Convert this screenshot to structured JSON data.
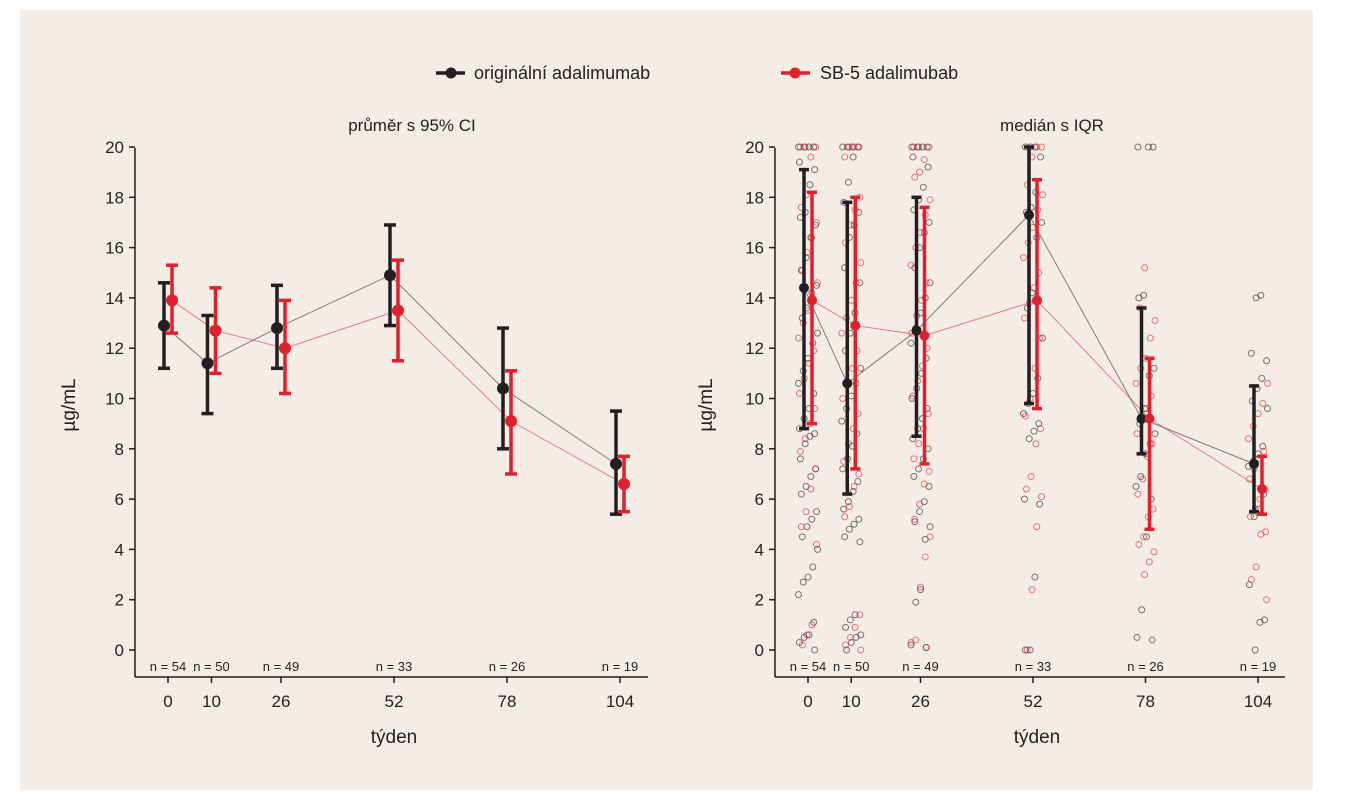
{
  "legend": [
    {
      "label": "originální adalimumab",
      "color": "#231f20"
    },
    {
      "label": "SB-5 adalimubab",
      "color": "#e2202c"
    }
  ],
  "chart_data": [
    {
      "type": "line",
      "title": "průměr s 95% CI",
      "xlabel": "týden",
      "ylabel": "µg/mL",
      "x": [
        0,
        10,
        26,
        52,
        78,
        104
      ],
      "x_tick_labels": [
        "0",
        "10",
        "26",
        "52",
        "78",
        "104"
      ],
      "y_ticks": [
        0,
        2,
        4,
        6,
        8,
        10,
        12,
        14,
        16,
        18,
        20
      ],
      "ylim": [
        -1,
        20
      ],
      "n_labels": [
        "n = 54",
        "n = 50",
        "n = 49",
        "n = 33",
        "n = 26",
        "n = 19"
      ],
      "series": [
        {
          "name": "originální adalimumab",
          "color": "#231f20",
          "values": [
            12.9,
            11.4,
            12.8,
            14.9,
            10.4,
            7.4
          ],
          "lower": [
            11.2,
            9.4,
            11.2,
            12.9,
            8.0,
            5.4
          ],
          "upper": [
            14.6,
            13.3,
            14.5,
            16.9,
            12.8,
            9.5
          ]
        },
        {
          "name": "SB-5 adalimubab",
          "color": "#e2202c",
          "values": [
            13.9,
            12.7,
            12.0,
            13.5,
            9.1,
            6.6
          ],
          "lower": [
            12.6,
            11.0,
            10.2,
            11.5,
            7.0,
            5.5
          ],
          "upper": [
            15.3,
            14.4,
            13.9,
            15.5,
            11.1,
            7.7
          ]
        }
      ]
    },
    {
      "type": "scatter",
      "title": "medián s IQR",
      "xlabel": "týden",
      "ylabel": "µg/mL",
      "x": [
        0,
        10,
        26,
        52,
        78,
        104
      ],
      "x_tick_labels": [
        "0",
        "10",
        "26",
        "52",
        "78",
        "104"
      ],
      "y_ticks": [
        0,
        2,
        4,
        6,
        8,
        10,
        12,
        14,
        16,
        18,
        20
      ],
      "ylim": [
        -1,
        20
      ],
      "n_labels": [
        "n = 54",
        "n = 50",
        "n = 49",
        "n = 33",
        "n = 26",
        "n = 19"
      ],
      "series": [
        {
          "name": "originální adalimumab",
          "color": "#231f20",
          "median": [
            14.4,
            10.6,
            12.7,
            17.3,
            9.2,
            7.4
          ],
          "q1": [
            8.8,
            6.2,
            8.5,
            9.8,
            7.8,
            5.5
          ],
          "q3": [
            19.1,
            17.8,
            18.0,
            20.0,
            13.6,
            10.5
          ],
          "points": [
            [
              20,
              20,
              20,
              20,
              19.4,
              19.1,
              18.5,
              17.4,
              17.2,
              16.9,
              16.4,
              15.6,
              15.1,
              14.5,
              14.2,
              13.6,
              13.2,
              12.6,
              12.2,
              11.6,
              11.1,
              10.6,
              10.2,
              9.6,
              9.2,
              8.8,
              8.6,
              8.5,
              8.2,
              7.6,
              7.2,
              6.9,
              6.5,
              6.2,
              5.5,
              5.2,
              4.9,
              4.5,
              4.0,
              3.3,
              2.9,
              2.7,
              2.2,
              1.1,
              0.6,
              0.5,
              0.3,
              0.0
            ],
            [
              20,
              20,
              20,
              20,
              19.6,
              18.6,
              17.8,
              17.4,
              16.9,
              16.4,
              15.2,
              14.6,
              13.4,
              12.6,
              11.9,
              11.2,
              10.6,
              10.1,
              9.6,
              9.1,
              8.6,
              8.1,
              7.6,
              7.2,
              6.7,
              6.3,
              5.9,
              5.6,
              5.2,
              5.0,
              4.8,
              4.5,
              4.3,
              1.4,
              1.2,
              0.9,
              0.6,
              0.5,
              0.3,
              0.0
            ],
            [
              20,
              20,
              20,
              20,
              19.6,
              19.2,
              18.4,
              17.9,
              17.5,
              17.0,
              16.6,
              16.0,
              15.2,
              14.6,
              14.0,
              13.4,
              12.8,
              12.2,
              11.6,
              11.0,
              10.4,
              10.0,
              9.6,
              9.2,
              8.8,
              8.4,
              8.0,
              7.6,
              7.2,
              6.9,
              6.5,
              5.9,
              5.5,
              5.1,
              4.9,
              4.4,
              2.4,
              1.9,
              0.2,
              0.1
            ],
            [
              20,
              20,
              20,
              19.6,
              18.2,
              17.6,
              17.4,
              17.0,
              16.4,
              14.2,
              13.6,
              12.4,
              10.8,
              10.2,
              9.8,
              9.4,
              9.0,
              8.7,
              8.4,
              6.0,
              5.8,
              2.9,
              0.0,
              0.0
            ],
            [
              20,
              20,
              20,
              14.1,
              14.0,
              11.2,
              10.9,
              9.6,
              9.0,
              8.6,
              8.2,
              7.8,
              6.9,
              6.5,
              6.0,
              4.5,
              1.6,
              0.5,
              0.4
            ],
            [
              14.1,
              14.0,
              11.8,
              11.5,
              10.8,
              10.4,
              9.9,
              9.6,
              8.1,
              7.8,
              7.5,
              7.3,
              6.2,
              5.6,
              5.3,
              2.6,
              1.2,
              1.1,
              0.0
            ]
          ]
        },
        {
          "name": "SB-5 adalimubab",
          "color": "#e2202c",
          "median": [
            13.9,
            12.9,
            12.5,
            13.9,
            9.2,
            6.4
          ],
          "q1": [
            9.0,
            7.2,
            7.4,
            9.6,
            4.8,
            5.4
          ],
          "q3": [
            18.2,
            18.0,
            17.6,
            18.7,
            11.6,
            7.7
          ],
          "points": [
            [
              20,
              20,
              20,
              19.6,
              18.1,
              17.6,
              17.0,
              16.4,
              15.8,
              15.1,
              14.6,
              14.0,
              13.5,
              13.0,
              12.4,
              11.9,
              11.4,
              10.8,
              10.2,
              9.6,
              9.0,
              8.4,
              7.9,
              7.2,
              6.4,
              5.5,
              4.9,
              4.2,
              1.0,
              0.6,
              0.2
            ],
            [
              20,
              20,
              20,
              19.6,
              18.0,
              17.5,
              16.9,
              16.2,
              15.4,
              14.6,
              13.9,
              13.2,
              12.6,
              11.9,
              11.2,
              10.6,
              10.0,
              9.4,
              8.8,
              8.2,
              7.5,
              7.0,
              6.5,
              5.7,
              5.3,
              1.4,
              0.9,
              0.5,
              0.2,
              0.0
            ],
            [
              20,
              20,
              20,
              19.5,
              19.0,
              18.8,
              17.9,
              17.3,
              16.6,
              16.0,
              15.3,
              14.6,
              13.9,
              13.3,
              12.6,
              12.0,
              11.3,
              10.7,
              10.1,
              9.4,
              8.8,
              8.2,
              7.6,
              7.1,
              6.6,
              5.8,
              5.2,
              4.5,
              3.7,
              2.5,
              0.4,
              0.3,
              0.1
            ],
            [
              20,
              20,
              19.6,
              18.5,
              18.1,
              17.5,
              16.8,
              16.2,
              15.6,
              15.0,
              14.4,
              13.8,
              13.2,
              12.4,
              11.2,
              10.0,
              9.3,
              8.8,
              8.2,
              6.9,
              6.4,
              6.1,
              4.9,
              2.4,
              0.0
            ],
            [
              15.2,
              13.6,
              13.1,
              12.4,
              11.6,
              11.2,
              10.6,
              10.1,
              9.6,
              9.1,
              8.6,
              8.2,
              7.7,
              6.8,
              6.2,
              5.6,
              5.3,
              4.5,
              4.2,
              3.9,
              3.5,
              3.0
            ],
            [
              10.6,
              9.8,
              9.4,
              8.9,
              8.4,
              7.9,
              7.6,
              7.2,
              6.8,
              6.4,
              6.0,
              5.6,
              5.3,
              4.7,
              4.6,
              3.3,
              2.8,
              2.0
            ]
          ]
        }
      ]
    }
  ]
}
